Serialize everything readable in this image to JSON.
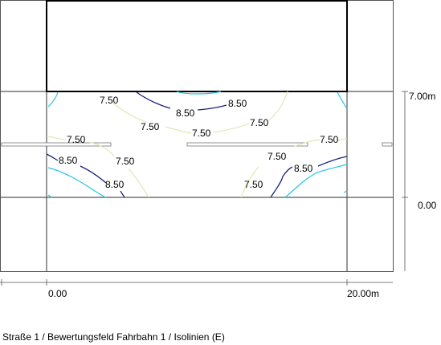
{
  "caption": "Straße 1 / Bewertungsfeld Fahrbahn 1 / Isolinien (E)",
  "dimensions": {
    "x_start": "0.00",
    "x_end": "20.00m",
    "y_start": "0.00",
    "y_end": "7.00m"
  },
  "contour_levels": [
    {
      "value": "7.50",
      "color": "#e6e6b4"
    },
    {
      "value": "8.50",
      "color": "#1a237e"
    },
    {
      "value": "cyan",
      "color": "#22c5e6"
    }
  ],
  "contour_labels": [
    "7.50",
    "8.50",
    "8.50",
    "7.50",
    "7.50",
    "7.50",
    "8.50",
    "7.50",
    "8.50",
    "7.50",
    "7.50",
    "8.50",
    "7.50"
  ]
}
